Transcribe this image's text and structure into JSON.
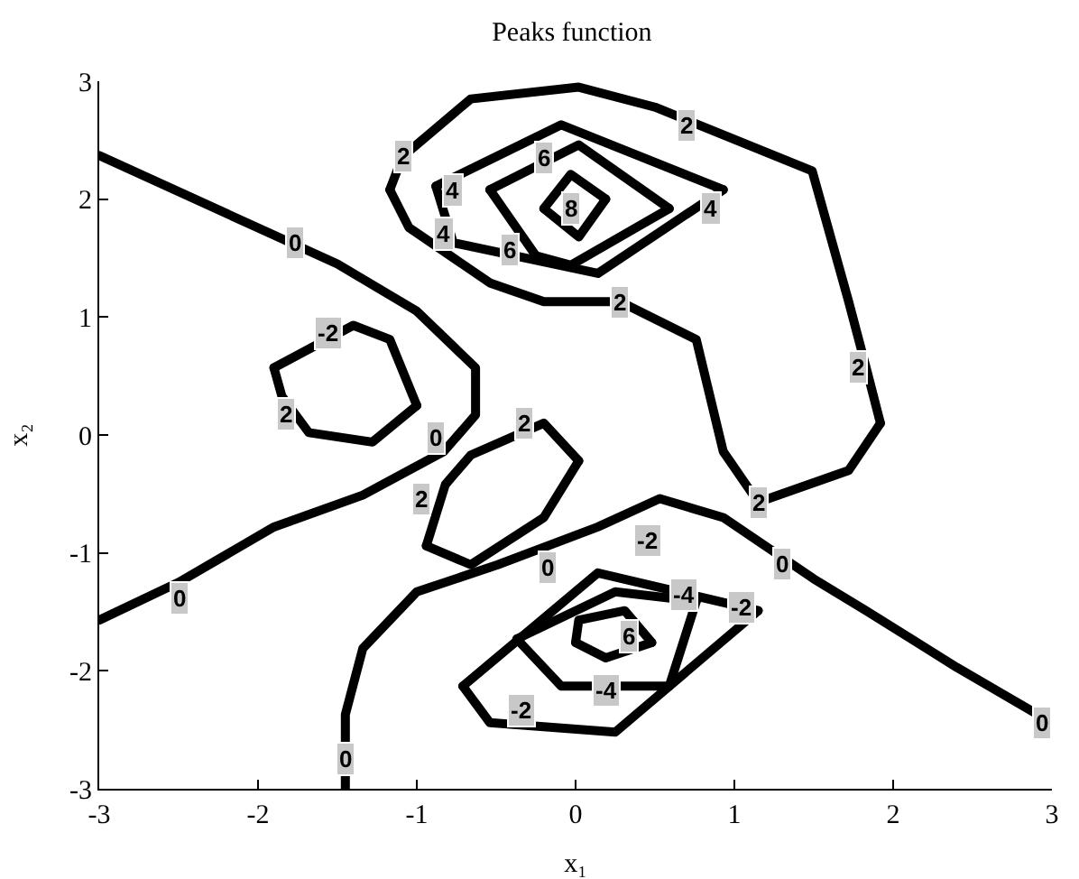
{
  "chart_data": {
    "type": "line",
    "title": "Peaks function",
    "xlabel": "x₁",
    "ylabel": "x₂",
    "xlim": [
      -3,
      3
    ],
    "ylim": [
      -3,
      3
    ],
    "xticks": [
      -3,
      -2,
      -1,
      0,
      1,
      2,
      3
    ],
    "yticks": [
      -3,
      -2,
      -1,
      0,
      1,
      2,
      3
    ],
    "grid": false,
    "marker": "none",
    "line_style": "solid",
    "series": [
      {
        "color": "#000000",
        "x": [
          -3,
          -1.5,
          -1.0,
          -0.63,
          -0.63,
          -0.83,
          -1.34,
          -1.9,
          -2.5,
          -3
        ],
        "values": [
          2.37,
          1.45,
          1.05,
          0.57,
          0.17,
          -0.14,
          -0.51,
          -0.78,
          -1.25,
          -1.57
        ]
      },
      {
        "color": "#000000",
        "x": [
          -1.45,
          -1.45,
          -1.34,
          -1.0,
          -0.49,
          0.14,
          0.53,
          0.93,
          1.5,
          1.83,
          2.4,
          3
        ],
        "values": [
          -3,
          -2.37,
          -1.81,
          -1.33,
          -1.1,
          -0.78,
          -0.54,
          -0.7,
          -1.22,
          -1.49,
          -1.97,
          -2.44
        ]
      },
      {
        "color": "#000000",
        "x": [
          -1.17,
          -1.09,
          -0.66,
          0.02,
          0.5,
          1.49,
          1.72,
          1.83,
          1.92
        ],
        "values": [
          2.08,
          2.36,
          2.85,
          2.95,
          2.78,
          2.24,
          1.13,
          0.57,
          0.1
        ]
      },
      {
        "color": "#000000",
        "x": [
          1.92,
          1.72,
          1.15,
          0.93,
          0.76,
          0.28,
          -0.2,
          -0.54,
          -1.05,
          -1.17
        ],
        "values": [
          0.1,
          -0.3,
          -0.57,
          -0.14,
          0.81,
          1.13,
          1.13,
          1.29,
          1.76,
          2.08
        ]
      },
      {
        "color": "#000000",
        "x": [
          -0.88,
          -0.09,
          0.93
        ],
        "values": [
          2.11,
          2.63,
          2.08
        ]
      },
      {
        "color": "#000000",
        "x": [
          0.93,
          0.14,
          -0.77,
          -0.88
        ],
        "values": [
          2.08,
          1.37,
          1.63,
          2.11
        ]
      },
      {
        "color": "#000000",
        "x": [
          -0.54,
          0.02,
          0.59
        ],
        "values": [
          2.08,
          2.46,
          1.92
        ]
      },
      {
        "color": "#000000",
        "x": [
          0.59,
          -0.03,
          -0.25,
          -0.54
        ],
        "values": [
          1.92,
          1.44,
          1.52,
          2.08
        ]
      },
      {
        "color": "#000000",
        "x": [
          -0.2,
          -0.03,
          0.19
        ],
        "values": [
          1.92,
          2.21,
          2.0
        ]
      },
      {
        "color": "#000000",
        "x": [
          0.19,
          0.02,
          -0.2
        ],
        "values": [
          2.0,
          1.68,
          1.92
        ]
      },
      {
        "color": "#000000",
        "x": [
          -1.9,
          -1.4,
          -1.17,
          -1.0
        ],
        "values": [
          0.57,
          0.93,
          0.81,
          0.25
        ]
      },
      {
        "color": "#000000",
        "x": [
          -1.0,
          -1.28,
          -1.68,
          -1.85,
          -1.9
        ],
        "values": [
          0.25,
          -0.06,
          0.02,
          0.33,
          0.57
        ]
      },
      {
        "color": "#000000",
        "x": [
          -0.94,
          -0.82,
          -0.66,
          -0.2,
          0.02
        ],
        "values": [
          -0.94,
          -0.42,
          -0.17,
          0.1,
          -0.22
        ]
      },
      {
        "color": "#000000",
        "x": [
          0.02,
          -0.2,
          -0.66,
          -0.94
        ],
        "values": [
          -0.22,
          -0.7,
          -1.1,
          -0.94
        ]
      },
      {
        "color": "#000000",
        "x": [
          -0.71,
          0.14,
          1.15
        ],
        "values": [
          -2.13,
          -1.17,
          -1.49
        ]
      },
      {
        "color": "#000000",
        "x": [
          1.15,
          0.25,
          -0.54,
          -0.71
        ],
        "values": [
          -1.49,
          -2.52,
          -2.44,
          -2.13
        ]
      },
      {
        "color": "#000000",
        "x": [
          -0.37,
          0.25,
          0.76
        ],
        "values": [
          -1.73,
          -1.33,
          -1.41
        ]
      },
      {
        "color": "#000000",
        "x": [
          0.76,
          0.59,
          -0.09,
          -0.37
        ],
        "values": [
          -1.41,
          -2.13,
          -2.13,
          -1.73
        ]
      },
      {
        "color": "#000000",
        "x": [
          0.0,
          0.02,
          0.31,
          0.48
        ],
        "values": [
          -1.76,
          -1.57,
          -1.49,
          -1.76
        ]
      },
      {
        "color": "#000000",
        "x": [
          0.48,
          0.19,
          0.0
        ],
        "values": [
          -1.76,
          -1.89,
          -1.76
        ]
      }
    ],
    "annotations": [
      {
        "text": "0",
        "x": -1.77,
        "y": 1.63
      },
      {
        "text": "2",
        "x": -1.09,
        "y": 2.36
      },
      {
        "text": "4",
        "x": -0.77,
        "y": 2.08
      },
      {
        "text": "4",
        "x": -0.83,
        "y": 1.71
      },
      {
        "text": "6",
        "x": -0.2,
        "y": 2.35
      },
      {
        "text": "8",
        "x": -0.03,
        "y": 1.92
      },
      {
        "text": "6",
        "x": -0.41,
        "y": 1.57
      },
      {
        "text": "2",
        "x": 0.7,
        "y": 2.63
      },
      {
        "text": "4",
        "x": 0.85,
        "y": 1.92
      },
      {
        "text": "2",
        "x": 0.28,
        "y": 1.13
      },
      {
        "text": "-2",
        "x": -1.56,
        "y": 0.86
      },
      {
        "text": "2",
        "x": -1.82,
        "y": 0.17
      },
      {
        "text": "0",
        "x": -0.88,
        "y": -0.02
      },
      {
        "text": "2",
        "x": -0.32,
        "y": 0.1
      },
      {
        "text": "2",
        "x": 1.78,
        "y": 0.57
      },
      {
        "text": "2",
        "x": -0.97,
        "y": -0.54
      },
      {
        "text": "2",
        "x": 1.15,
        "y": -0.57
      },
      {
        "text": "0",
        "x": -0.18,
        "y": -1.13
      },
      {
        "text": "-2",
        "x": 0.45,
        "y": -0.9
      },
      {
        "text": "0",
        "x": 1.3,
        "y": -1.1
      },
      {
        "text": "-4",
        "x": 0.68,
        "y": -1.35
      },
      {
        "text": "-2",
        "x": 1.04,
        "y": -1.46
      },
      {
        "text": "6",
        "x": 0.34,
        "y": -1.7
      },
      {
        "text": "-4",
        "x": 0.19,
        "y": -2.16
      },
      {
        "text": "-2",
        "x": -0.34,
        "y": -2.33
      },
      {
        "text": "0",
        "x": -2.5,
        "y": -1.38
      },
      {
        "text": "0",
        "x": -1.45,
        "y": -2.75
      },
      {
        "text": "0",
        "x": 2.94,
        "y": -2.44
      }
    ]
  }
}
